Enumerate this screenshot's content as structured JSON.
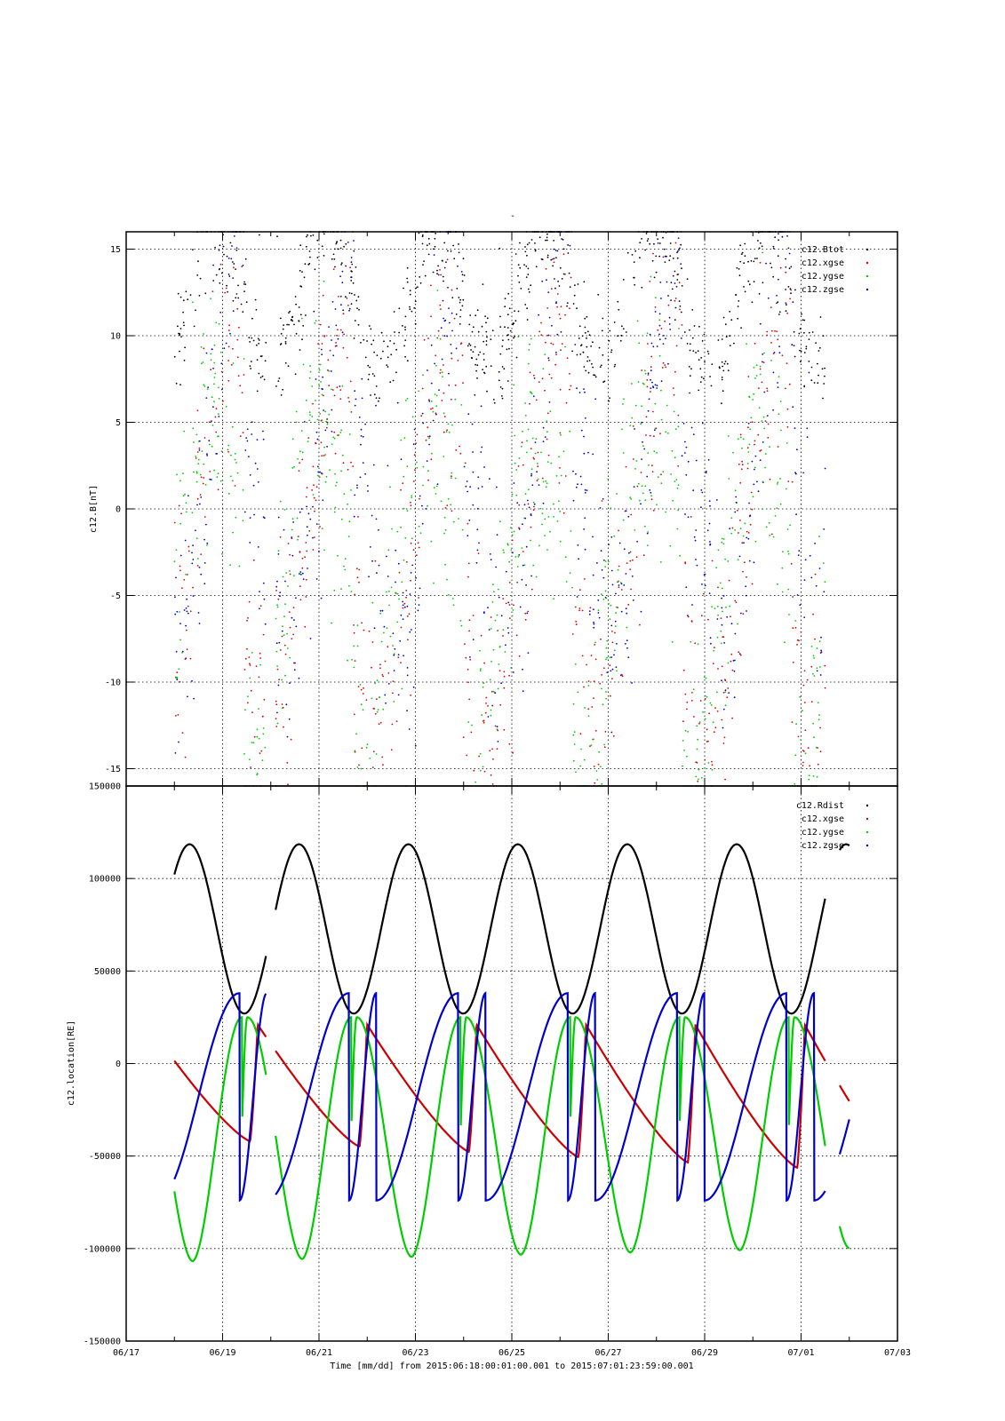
{
  "title": "-",
  "x_axis": {
    "label": "Time [mm/dd]  from 2015:06:18:00:01:00.001  to  2015:07:01:23:59:00.001",
    "start_day": "06/17",
    "end_day": "07/03",
    "tick_labels": [
      "06/17",
      "06/19",
      "06/21",
      "06/23",
      "06/25",
      "06/27",
      "06/29",
      "07/01",
      "07/03"
    ],
    "minor_ticks_per_day": 1
  },
  "chart_data": [
    {
      "type": "scatter",
      "name": "magnetic-field",
      "ylabel": "c12.B[nT]",
      "ylim": [
        -16,
        16
      ],
      "yticks": [
        -15,
        -10,
        -5,
        0,
        5,
        10,
        15
      ],
      "grid": true,
      "legend_position": "top-right",
      "series": [
        {
          "name": "c12.Btot",
          "color": "#000000"
        },
        {
          "name": "c12.xgse",
          "color": "#e00000"
        },
        {
          "name": "c12.ygse",
          "color": "#00cc00"
        },
        {
          "name": "c12.zgse",
          "color": "#0000cc"
        }
      ],
      "data_note_days": [
        "06/18",
        "07/01"
      ]
    },
    {
      "type": "line",
      "name": "location",
      "ylabel": "c12.location[RE]",
      "ylim": [
        -150000,
        150000
      ],
      "yticks": [
        -150000,
        -100000,
        -50000,
        0,
        50000,
        100000,
        150000
      ],
      "grid": true,
      "legend_position": "top-right",
      "x_unit": "days since 06/17 00:00",
      "data_segments": [
        [
          1.0,
          2.9
        ],
        [
          3.1,
          14.5
        ],
        [
          14.8,
          15.0
        ]
      ],
      "orbit_period_days": 2.27,
      "series": [
        {
          "name": "c12.Rdist",
          "color": "#000000",
          "peak": 118500,
          "trough": 27000
        },
        {
          "name": "c12.xgse",
          "color": "#cc0000",
          "peak": 21000,
          "trough_start": -40000,
          "trough_end": -57000
        },
        {
          "name": "c12.ygse",
          "color": "#00cc00",
          "peak": 25000,
          "trough_start": -107000,
          "trough_end": -100000
        },
        {
          "name": "c12.zgse",
          "color": "#0000cc",
          "peak": 38000,
          "trough": -74000
        }
      ]
    }
  ]
}
